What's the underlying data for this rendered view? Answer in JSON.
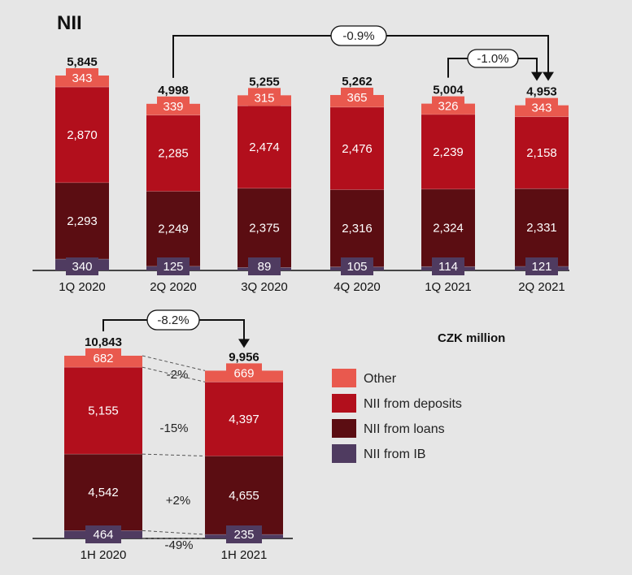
{
  "title": "NII",
  "unit_label": "CZK million",
  "colors": {
    "other": "#e9594e",
    "deposits": "#b20f1c",
    "loans": "#5b0d12",
    "ib": "#4f3b60",
    "background": "#e6e6e6"
  },
  "legend": [
    {
      "key": "other",
      "label": "Other"
    },
    {
      "key": "deposits",
      "label": "NII from deposits"
    },
    {
      "key": "loans",
      "label": "NII from loans"
    },
    {
      "key": "ib",
      "label": "NII from IB"
    }
  ],
  "chart_data": [
    {
      "type": "bar",
      "stacked": true,
      "categories": [
        "1Q 2020",
        "2Q 2020",
        "3Q 2020",
        "4Q 2020",
        "1Q 2021",
        "2Q 2021"
      ],
      "series": [
        {
          "name": "NII from IB",
          "key": "ib",
          "values": [
            340,
            125,
            89,
            105,
            114,
            121
          ]
        },
        {
          "name": "NII from loans",
          "key": "loans",
          "values": [
            2293,
            2249,
            2375,
            2316,
            2324,
            2331
          ]
        },
        {
          "name": "NII from deposits",
          "key": "deposits",
          "values": [
            2870,
            2285,
            2474,
            2476,
            2239,
            2158
          ]
        },
        {
          "name": "Other",
          "key": "other",
          "values": [
            343,
            339,
            315,
            365,
            326,
            343
          ]
        }
      ],
      "totals": [
        "5,845",
        "4,998",
        "5,255",
        "5,262",
        "5,004",
        "4,953"
      ],
      "segment_labels": {
        "ib": [
          "340",
          "125",
          "89",
          "105",
          "114",
          "121"
        ],
        "loans": [
          "2,293",
          "2,249",
          "2,375",
          "2,316",
          "2,324",
          "2,331"
        ],
        "deposits": [
          "2,870",
          "2,285",
          "2,474",
          "2,476",
          "2,239",
          "2,158"
        ],
        "other": [
          "343",
          "339",
          "315",
          "365",
          "326",
          "343"
        ]
      },
      "annotations": [
        {
          "text": "-0.9%",
          "from": "2Q 2020",
          "to": "2Q 2021"
        },
        {
          "text": "-1.0%",
          "from": "1Q 2021",
          "to": "2Q 2021"
        }
      ]
    },
    {
      "type": "bar",
      "stacked": true,
      "categories": [
        "1H 2020",
        "1H 2021"
      ],
      "series": [
        {
          "name": "NII from IB",
          "key": "ib",
          "values": [
            464,
            235
          ]
        },
        {
          "name": "NII from loans",
          "key": "loans",
          "values": [
            4542,
            4655
          ]
        },
        {
          "name": "NII from deposits",
          "key": "deposits",
          "values": [
            5155,
            4397
          ]
        },
        {
          "name": "Other",
          "key": "other",
          "values": [
            682,
            669
          ]
        }
      ],
      "totals": [
        "10,843",
        "9,956"
      ],
      "segment_labels": {
        "ib": [
          "464",
          "235"
        ],
        "loans": [
          "4,542",
          "4,655"
        ],
        "deposits": [
          "5,155",
          "4,397"
        ],
        "other": [
          "682",
          "669"
        ]
      },
      "change_labels": {
        "other": "-2%",
        "deposits": "-15%",
        "loans": "+2%",
        "ib": "-49%"
      },
      "annotations": [
        {
          "text": "-8.2%",
          "from": "1H 2020",
          "to": "1H 2021"
        }
      ]
    }
  ]
}
